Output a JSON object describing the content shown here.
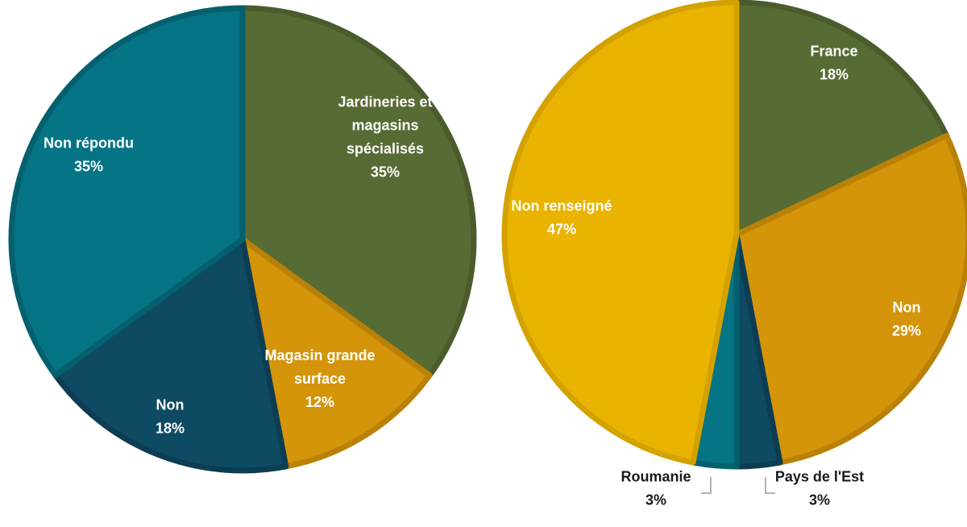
{
  "chart_data": [
    {
      "type": "pie",
      "title": "",
      "slices": [
        {
          "label": "Jardineries et magasins spécialisés",
          "label_lines": [
            "Jardineries et",
            "magasins",
            "spécialisés"
          ],
          "value": 35,
          "value_text": "35%",
          "color": "#576b34",
          "border": "#4a5c2c"
        },
        {
          "label": "Magasin grande surface",
          "label_lines": [
            "Magasin grande",
            "surface"
          ],
          "value": 12,
          "value_text": "12%",
          "color": "#d4950b",
          "border": "#b98106"
        },
        {
          "label": "Non",
          "label_lines": [
            "Non"
          ],
          "value": 18,
          "value_text": "18%",
          "color": "#0f4a63",
          "border": "#0c3d52"
        },
        {
          "label": "Non répondu",
          "label_lines": [
            "Non répondu"
          ],
          "value": 35,
          "value_text": "35%",
          "color": "#057485",
          "border": "#04606e"
        }
      ]
    },
    {
      "type": "pie",
      "title": "",
      "slices": [
        {
          "label": "France",
          "label_lines": [
            "France"
          ],
          "value": 18,
          "value_text": "18%",
          "color": "#576b34",
          "border": "#4a5c2c"
        },
        {
          "label": "Non",
          "label_lines": [
            "Non"
          ],
          "value": 29,
          "value_text": "29%",
          "color": "#d4950b",
          "border": "#b98106"
        },
        {
          "label": "Pays de l'Est",
          "label_lines": [
            "Pays de l'Est"
          ],
          "value": 3,
          "value_text": "3%",
          "color": "#0f4a63",
          "border": "#0c3d52"
        },
        {
          "label": "Roumanie",
          "label_lines": [
            "Roumanie"
          ],
          "value": 3,
          "value_text": "3%",
          "color": "#057485",
          "border": "#04606e"
        },
        {
          "label": "Non renseigné",
          "label_lines": [
            "Non renseigné"
          ],
          "value": 47,
          "value_text": "47%",
          "color": "#e9b300",
          "border": "#d4a200"
        }
      ]
    }
  ]
}
